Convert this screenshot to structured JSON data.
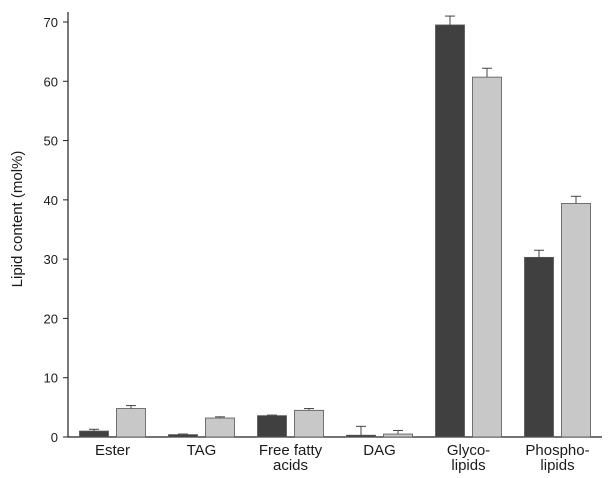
{
  "chart_data": {
    "type": "bar",
    "title": "",
    "xlabel": "",
    "ylabel": "Lipid content (mol%)",
    "ylim": [
      0,
      70
    ],
    "yticks": [
      0,
      10,
      20,
      30,
      40,
      50,
      60,
      70
    ],
    "categories": [
      [
        "Ester"
      ],
      [
        "TAG"
      ],
      [
        "Free fatty",
        "acids"
      ],
      [
        "DAG"
      ],
      [
        "Glyco-",
        "lipids"
      ],
      [
        "Phospho-",
        "lipids"
      ]
    ],
    "series": [
      {
        "color": "#404040",
        "values": [
          1.0,
          0.4,
          3.6,
          0.3,
          69.5,
          30.3
        ],
        "errors": [
          0.3,
          0.1,
          0.1,
          1.5,
          1.5,
          1.2
        ]
      },
      {
        "color": "#c8c8c8",
        "values": [
          4.8,
          3.2,
          4.5,
          0.5,
          60.7,
          39.4
        ],
        "errors": [
          0.5,
          0.2,
          0.3,
          0.6,
          1.5,
          1.2
        ]
      }
    ],
    "grid": false,
    "legend": "none"
  }
}
